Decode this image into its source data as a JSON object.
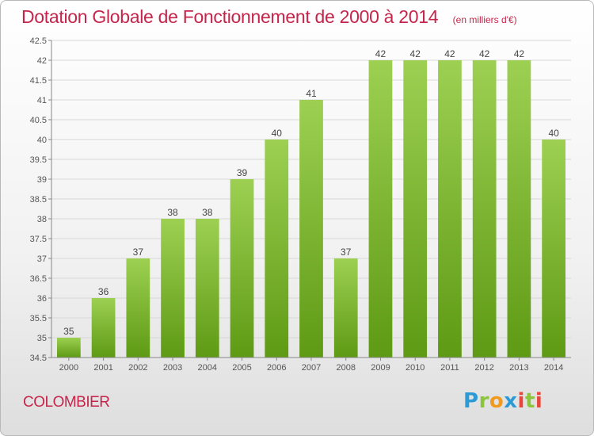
{
  "title": "Dotation Globale de Fonctionnement de 2000 à 2014",
  "unit_note": "(en milliers d'€)",
  "commune": "COLOMBIER",
  "logo": {
    "text": "Proxiti",
    "letters": [
      "P",
      "r",
      "o",
      "x",
      "i",
      "t",
      "i"
    ]
  },
  "colors": {
    "title": "#c5254a",
    "bar_light": "#9dd052",
    "bar_dark": "#5e9a14",
    "axis": "#555555"
  },
  "chart_data": {
    "type": "bar",
    "title": "Dotation Globale de Fonctionnement de 2000 à 2014",
    "subtitle": "(en milliers d'€)",
    "categories": [
      "2000",
      "2001",
      "2002",
      "2003",
      "2004",
      "2005",
      "2006",
      "2007",
      "2008",
      "2009",
      "2010",
      "2011",
      "2012",
      "2013",
      "2014"
    ],
    "values": [
      35,
      36,
      37,
      38,
      38,
      39,
      40,
      41,
      37,
      42,
      42,
      42,
      42,
      42,
      40
    ],
    "data_labels": [
      "35",
      "36",
      "37",
      "38",
      "38",
      "39",
      "40",
      "41",
      "37",
      "42",
      "42",
      "42",
      "42",
      "42",
      "40"
    ],
    "xlabel": "",
    "ylabel": "",
    "ylim": [
      34.5,
      42.5
    ],
    "yticks": [
      "34.5",
      "35",
      "35.5",
      "36",
      "36.5",
      "37",
      "37.5",
      "38",
      "38.5",
      "39",
      "39.5",
      "40",
      "40.5",
      "41",
      "41.5",
      "42",
      "42.5"
    ],
    "grid": true,
    "legend": "none"
  }
}
